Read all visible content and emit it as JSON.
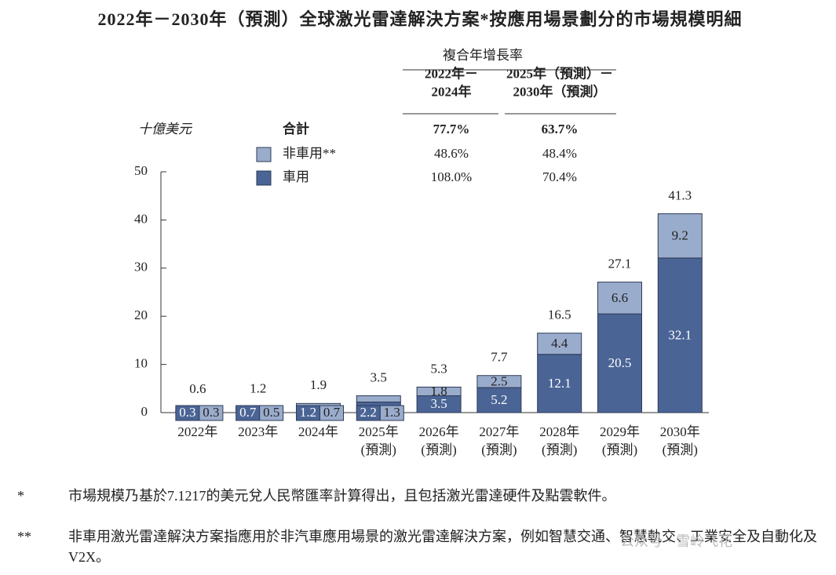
{
  "chart_data": {
    "type": "stacked_bar",
    "title": "2022年－2030年（預測）全球激光雷達解決方案*按應用場景劃分的市場規模明細",
    "y_label": "十億美元",
    "categories": [
      "2022年",
      "2023年",
      "2024年",
      "2025年\n(預測)",
      "2026年\n(預測)",
      "2027年\n(預測)",
      "2028年\n(預測)",
      "2029年\n(預測)",
      "2030年\n(預測)"
    ],
    "series": [
      {
        "name": "車用",
        "color": "#4a6496",
        "label_color": "#ffffff",
        "values": [
          0.3,
          0.7,
          1.2,
          2.2,
          3.5,
          5.2,
          12.1,
          20.5,
          32.1
        ],
        "cagr": [
          "108.0%",
          "70.4%"
        ]
      },
      {
        "name": "非車用**",
        "color": "#9aaccc",
        "label_color": "#222222",
        "values": [
          0.3,
          0.5,
          0.7,
          1.3,
          1.8,
          2.5,
          4.4,
          6.6,
          9.2
        ],
        "cagr": [
          "48.6%",
          "48.4%"
        ]
      }
    ],
    "totals": [
      0.6,
      1.2,
      1.9,
      3.5,
      5.3,
      7.7,
      16.5,
      27.1,
      41.3
    ],
    "ylim": [
      0,
      50
    ],
    "yticks": [
      0,
      10,
      20,
      30,
      40,
      50
    ],
    "cagr": {
      "title": "複合年增長率",
      "columns": [
        "2022年－\n2024年",
        "2025年（預測）－\n2030年（預測）"
      ],
      "total_label": "合計",
      "total": [
        "77.7%",
        "63.7%"
      ]
    }
  },
  "footnotes": [
    {
      "mark": "*",
      "text": "市場規模乃基於7.1217的美元兌人民幣匯率計算得出，且包括激光雷達硬件及點雲軟件。"
    },
    {
      "mark": "**",
      "text": "非車用激光雷達解決方案指應用於非汽車應用場景的激光雷達解決方案，例如智慧交通、智慧軌交、工業安全及自動化及V2X。"
    }
  ],
  "watermark": "公众号 · 雪岭飞花"
}
